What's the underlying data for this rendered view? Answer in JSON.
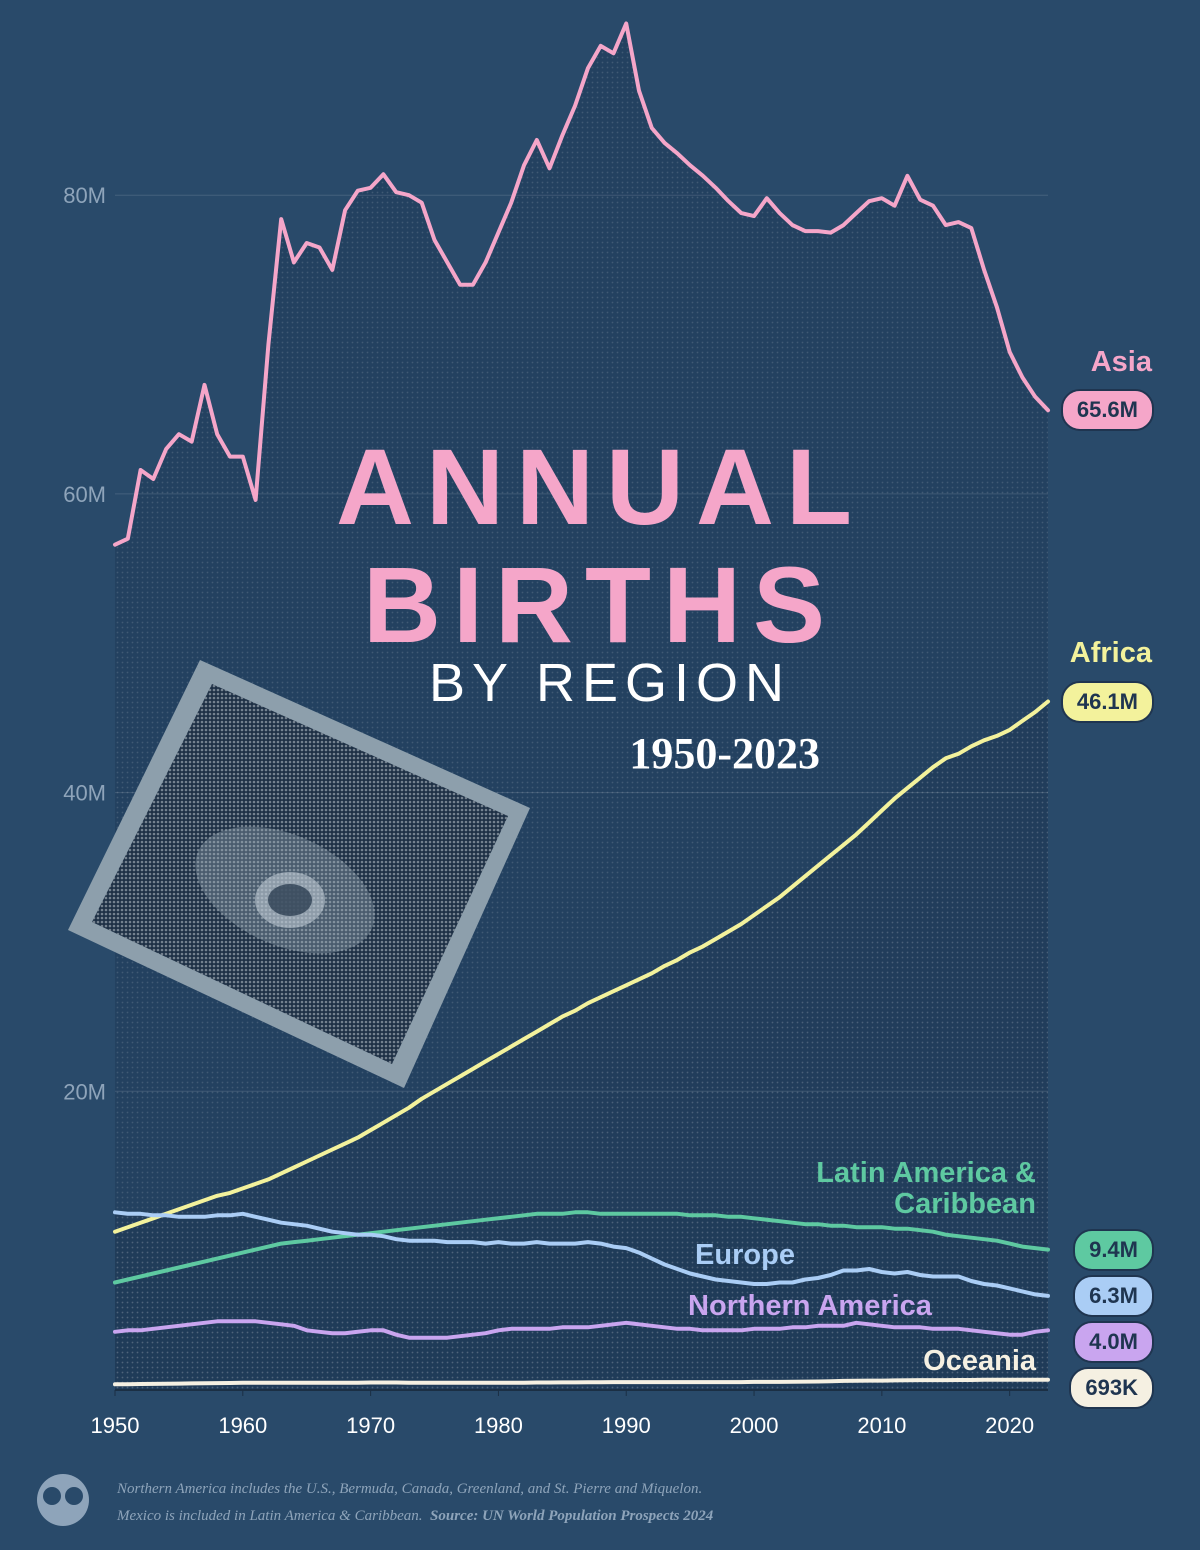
{
  "chart_data": {
    "type": "line",
    "title": "ANNUAL BIRTHS",
    "subtitle": "BY REGION",
    "date_range": "1950-2023",
    "x": [
      1950,
      1951,
      1952,
      1953,
      1954,
      1955,
      1956,
      1957,
      1958,
      1959,
      1960,
      1961,
      1962,
      1963,
      1964,
      1965,
      1966,
      1967,
      1968,
      1969,
      1970,
      1971,
      1972,
      1973,
      1974,
      1975,
      1976,
      1977,
      1978,
      1979,
      1980,
      1981,
      1982,
      1983,
      1984,
      1985,
      1986,
      1987,
      1988,
      1989,
      1990,
      1991,
      1992,
      1993,
      1994,
      1995,
      1996,
      1997,
      1998,
      1999,
      2000,
      2001,
      2002,
      2003,
      2004,
      2005,
      2006,
      2007,
      2008,
      2009,
      2010,
      2011,
      2012,
      2013,
      2014,
      2015,
      2016,
      2017,
      2018,
      2019,
      2020,
      2021,
      2022,
      2023
    ],
    "xlim": [
      1950,
      2023
    ],
    "xticks": [
      1950,
      1960,
      1970,
      1980,
      1990,
      2000,
      2010,
      2020
    ],
    "ylim": [
      0,
      92
    ],
    "yticks": [
      {
        "value": 20,
        "label": "20M"
      },
      {
        "value": 40,
        "label": "40M"
      },
      {
        "value": 60,
        "label": "60M"
      },
      {
        "value": 80,
        "label": "80M"
      }
    ],
    "grid": true,
    "series": [
      {
        "name": "Asia",
        "color": "#f5a6c9",
        "end_label": "65.6M",
        "values": [
          56.6,
          57,
          61.6,
          61,
          63,
          64,
          63.5,
          67.3,
          64,
          62.5,
          62.5,
          59.6,
          70,
          78.4,
          75.5,
          76.8,
          76.5,
          75,
          79,
          80.3,
          80.5,
          81.4,
          80.2,
          80,
          79.5,
          77,
          75.5,
          74,
          74,
          75.5,
          77.5,
          79.5,
          82,
          83.7,
          81.8,
          84,
          86,
          88.5,
          90,
          89.5,
          91.5,
          87,
          84.5,
          83.5,
          82.8,
          82,
          81.3,
          80.5,
          79.6,
          78.8,
          78.6,
          79.8,
          78.8,
          78,
          77.6,
          77.6,
          77.5,
          78,
          78.8,
          79.6,
          79.8,
          79.3,
          81.3,
          79.7,
          79.3,
          78,
          78.2,
          77.8,
          75,
          72.5,
          69.5,
          67.8,
          66.5,
          65.6
        ]
      },
      {
        "name": "Africa",
        "color": "#f3f29c",
        "end_label": "46.1M",
        "values": [
          10.6,
          10.9,
          11.2,
          11.5,
          11.8,
          12.1,
          12.4,
          12.7,
          13.0,
          13.2,
          13.5,
          13.8,
          14.1,
          14.5,
          14.9,
          15.3,
          15.7,
          16.1,
          16.5,
          16.9,
          17.4,
          17.9,
          18.4,
          18.9,
          19.5,
          20.0,
          20.5,
          21.0,
          21.5,
          22.0,
          22.5,
          23.0,
          23.5,
          24.0,
          24.5,
          25.0,
          25.4,
          25.9,
          26.3,
          26.7,
          27.1,
          27.5,
          27.9,
          28.4,
          28.8,
          29.3,
          29.7,
          30.2,
          30.7,
          31.2,
          31.8,
          32.4,
          33.0,
          33.7,
          34.4,
          35.1,
          35.8,
          36.5,
          37.2,
          38.0,
          38.8,
          39.6,
          40.3,
          41.0,
          41.7,
          42.3,
          42.6,
          43.1,
          43.5,
          43.8,
          44.2,
          44.8,
          45.4,
          46.1
        ]
      },
      {
        "name": "Latin America & Caribbean",
        "color": "#5ec9a1",
        "end_label": "9.4M",
        "values": [
          7.2,
          7.4,
          7.6,
          7.8,
          8.0,
          8.2,
          8.4,
          8.6,
          8.8,
          9.0,
          9.2,
          9.4,
          9.6,
          9.8,
          9.9,
          10.0,
          10.1,
          10.2,
          10.3,
          10.4,
          10.5,
          10.6,
          10.7,
          10.8,
          10.9,
          11.0,
          11.1,
          11.2,
          11.3,
          11.4,
          11.5,
          11.6,
          11.7,
          11.8,
          11.8,
          11.8,
          11.9,
          11.9,
          11.8,
          11.8,
          11.8,
          11.8,
          11.8,
          11.8,
          11.8,
          11.7,
          11.7,
          11.7,
          11.6,
          11.6,
          11.5,
          11.4,
          11.3,
          11.2,
          11.1,
          11.1,
          11.0,
          11.0,
          10.9,
          10.9,
          10.9,
          10.8,
          10.8,
          10.7,
          10.6,
          10.4,
          10.3,
          10.2,
          10.1,
          10.0,
          9.8,
          9.6,
          9.5,
          9.4
        ]
      },
      {
        "name": "Europe",
        "color": "#aacdf5",
        "end_label": "6.3M",
        "values": [
          11.9,
          11.8,
          11.8,
          11.7,
          11.7,
          11.6,
          11.6,
          11.6,
          11.7,
          11.7,
          11.8,
          11.6,
          11.4,
          11.2,
          11.1,
          11.0,
          10.8,
          10.6,
          10.5,
          10.4,
          10.4,
          10.3,
          10.1,
          10.0,
          10.0,
          10.0,
          9.9,
          9.9,
          9.9,
          9.8,
          9.9,
          9.8,
          9.8,
          9.9,
          9.8,
          9.8,
          9.8,
          9.9,
          9.8,
          9.6,
          9.5,
          9.2,
          8.8,
          8.4,
          8.1,
          7.8,
          7.6,
          7.4,
          7.3,
          7.2,
          7.1,
          7.1,
          7.2,
          7.2,
          7.4,
          7.5,
          7.7,
          8.0,
          8.0,
          8.1,
          7.9,
          7.8,
          7.9,
          7.7,
          7.6,
          7.6,
          7.6,
          7.3,
          7.1,
          7.0,
          6.8,
          6.6,
          6.4,
          6.3
        ]
      },
      {
        "name": "Northern America",
        "color": "#c9a5ef",
        "end_label": "4.0M",
        "values": [
          3.9,
          4.0,
          4.0,
          4.1,
          4.2,
          4.3,
          4.4,
          4.5,
          4.6,
          4.6,
          4.6,
          4.6,
          4.5,
          4.4,
          4.3,
          4.0,
          3.9,
          3.8,
          3.8,
          3.9,
          4.0,
          4.0,
          3.7,
          3.5,
          3.5,
          3.5,
          3.5,
          3.6,
          3.7,
          3.8,
          4.0,
          4.1,
          4.1,
          4.1,
          4.1,
          4.2,
          4.2,
          4.2,
          4.3,
          4.4,
          4.5,
          4.4,
          4.3,
          4.2,
          4.1,
          4.1,
          4.0,
          4.0,
          4.0,
          4.0,
          4.1,
          4.1,
          4.1,
          4.2,
          4.2,
          4.3,
          4.3,
          4.3,
          4.5,
          4.4,
          4.3,
          4.2,
          4.2,
          4.2,
          4.1,
          4.1,
          4.1,
          4.0,
          3.9,
          3.8,
          3.7,
          3.7,
          3.9,
          4.0
        ]
      },
      {
        "name": "Oceania",
        "color": "#f5f0e2",
        "end_label": "693K",
        "values": [
          0.38,
          0.39,
          0.4,
          0.41,
          0.42,
          0.43,
          0.44,
          0.45,
          0.46,
          0.47,
          0.48,
          0.48,
          0.48,
          0.48,
          0.48,
          0.48,
          0.48,
          0.48,
          0.49,
          0.49,
          0.5,
          0.5,
          0.5,
          0.49,
          0.49,
          0.48,
          0.48,
          0.48,
          0.48,
          0.48,
          0.48,
          0.49,
          0.49,
          0.5,
          0.5,
          0.51,
          0.51,
          0.52,
          0.52,
          0.53,
          0.53,
          0.53,
          0.53,
          0.53,
          0.53,
          0.53,
          0.53,
          0.53,
          0.53,
          0.53,
          0.54,
          0.54,
          0.54,
          0.55,
          0.56,
          0.57,
          0.59,
          0.61,
          0.62,
          0.63,
          0.63,
          0.64,
          0.65,
          0.66,
          0.66,
          0.66,
          0.67,
          0.67,
          0.68,
          0.68,
          0.68,
          0.68,
          0.69,
          0.693
        ]
      }
    ],
    "notes": [
      "Northern America includes the U.S., Bermuda, Canada, Greenland, and St. Pierre and Miquelon.",
      "Mexico is included in Latin America & Caribbean."
    ],
    "source": "Source: UN World Population Prospects 2024"
  }
}
